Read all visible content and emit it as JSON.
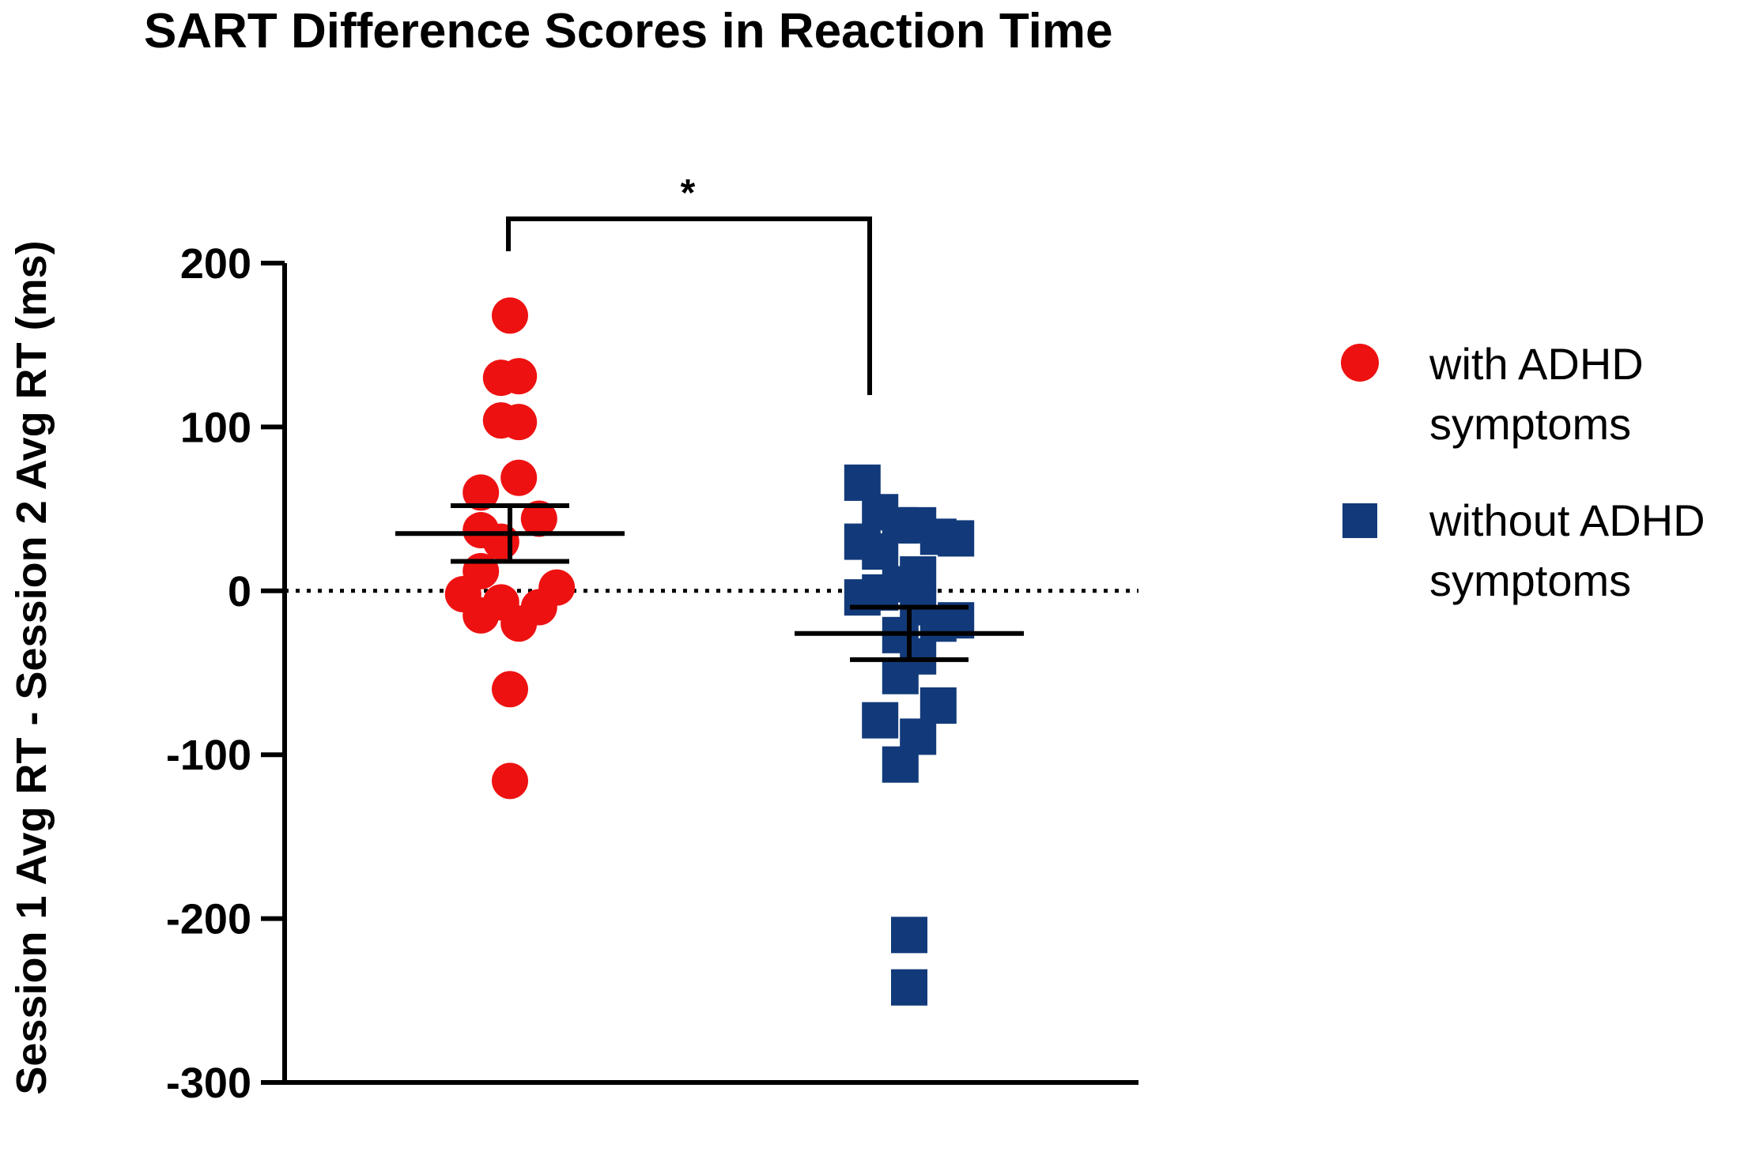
{
  "chart_data": {
    "type": "scatter",
    "title": "SART Difference Scores in Reaction Time",
    "xlabel": "",
    "ylabel": "Session 1 Avg RT - Session 2 Avg RT (ms)",
    "ylim": [
      -300,
      200
    ],
    "yticks": [
      200,
      100,
      0,
      -100,
      -200,
      -300
    ],
    "reference_line": 0,
    "grid": false,
    "legend_position": "right",
    "significance_marker": "*",
    "colors": {
      "with": "#ee1111",
      "without": "#123a7a"
    },
    "series": [
      {
        "name": "with ADHD symptoms",
        "marker": "circle",
        "color": "#ee1111",
        "mean": 35,
        "sem": 17,
        "points": [
          {
            "dx": 0.0,
            "y": 168
          },
          {
            "dx": -0.07,
            "y": 130
          },
          {
            "dx": 0.07,
            "y": 131
          },
          {
            "dx": -0.07,
            "y": 104
          },
          {
            "dx": 0.07,
            "y": 103
          },
          {
            "dx": 0.07,
            "y": 69
          },
          {
            "dx": -0.23,
            "y": 60
          },
          {
            "dx": 0.23,
            "y": 44
          },
          {
            "dx": -0.23,
            "y": 37
          },
          {
            "dx": -0.07,
            "y": 30
          },
          {
            "dx": -0.23,
            "y": 12
          },
          {
            "dx": -0.37,
            "y": -2
          },
          {
            "dx": 0.37,
            "y": 2
          },
          {
            "dx": -0.23,
            "y": -15
          },
          {
            "dx": -0.07,
            "y": -7
          },
          {
            "dx": 0.07,
            "y": -20
          },
          {
            "dx": 0.23,
            "y": -10
          },
          {
            "dx": 0.0,
            "y": -60
          },
          {
            "dx": 0.0,
            "y": -116
          }
        ]
      },
      {
        "name": "without ADHD symptoms",
        "marker": "square",
        "color": "#123a7a",
        "mean": -26,
        "sem": 16,
        "points": [
          {
            "dx": -0.37,
            "y": 66
          },
          {
            "dx": -0.23,
            "y": 48
          },
          {
            "dx": -0.07,
            "y": 40
          },
          {
            "dx": 0.07,
            "y": 40
          },
          {
            "dx": 0.23,
            "y": 33
          },
          {
            "dx": 0.37,
            "y": 32
          },
          {
            "dx": -0.37,
            "y": 30
          },
          {
            "dx": -0.23,
            "y": 24
          },
          {
            "dx": 0.07,
            "y": 10
          },
          {
            "dx": -0.23,
            "y": -1
          },
          {
            "dx": -0.07,
            "y": 4
          },
          {
            "dx": -0.37,
            "y": -4
          },
          {
            "dx": 0.07,
            "y": -10
          },
          {
            "dx": 0.23,
            "y": -20
          },
          {
            "dx": 0.37,
            "y": -18
          },
          {
            "dx": -0.07,
            "y": -27
          },
          {
            "dx": 0.07,
            "y": -40
          },
          {
            "dx": -0.07,
            "y": -52
          },
          {
            "dx": 0.23,
            "y": -70
          },
          {
            "dx": -0.23,
            "y": -79
          },
          {
            "dx": 0.07,
            "y": -89
          },
          {
            "dx": -0.07,
            "y": -106
          },
          {
            "dx": 0.0,
            "y": -210
          },
          {
            "dx": 0.0,
            "y": -242
          }
        ]
      }
    ]
  },
  "legend": {
    "items": [
      {
        "line1": "with ADHD",
        "line2": "symptoms"
      },
      {
        "line1": "without ADHD",
        "line2": "symptoms"
      }
    ]
  }
}
